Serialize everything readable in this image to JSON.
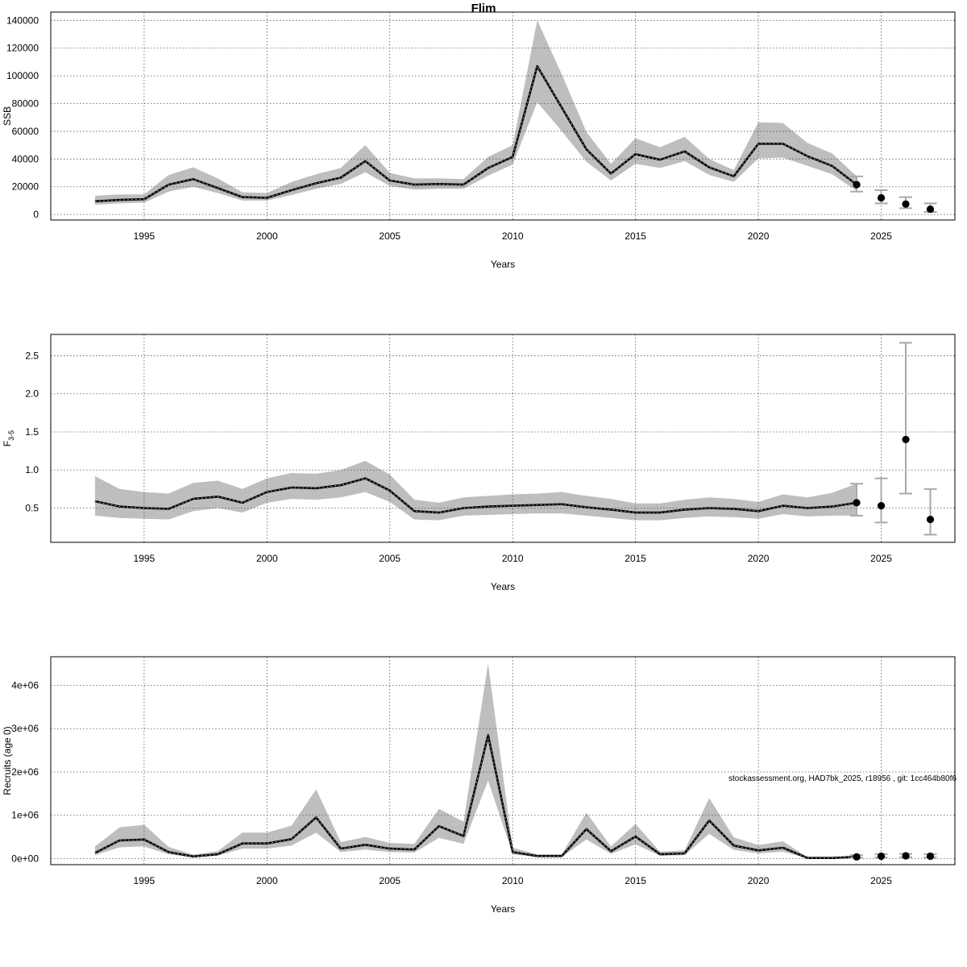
{
  "title": "Flim",
  "footer": "stockassessment.org, HAD7bk_2025, r18956 , git: 1cc464b80f6",
  "colors": {
    "band": "#bebebe",
    "line": "#000000",
    "point": "#000000",
    "errorbar": "#a9a9a9",
    "grid": "#555555"
  },
  "chart_data": [
    {
      "type": "line",
      "ylabel": "SSB",
      "xlabel": "Years",
      "xlim": [
        1991.2,
        2028.0
      ],
      "ylim": [
        -4000,
        146000
      ],
      "grid": true,
      "xticks": [
        1995,
        2000,
        2005,
        2010,
        2015,
        2020,
        2025
      ],
      "yticks": [
        0,
        20000,
        40000,
        60000,
        80000,
        100000,
        120000,
        140000
      ],
      "ytick_labels": [
        "0",
        "20000",
        "40000",
        "60000",
        "80000",
        "100000",
        "120000",
        "140000"
      ],
      "x": [
        1993,
        1994,
        1995,
        1996,
        1997,
        1998,
        1999,
        2000,
        2001,
        2002,
        2003,
        2004,
        2005,
        2006,
        2007,
        2008,
        2009,
        2010,
        2011,
        2012,
        2013,
        2014,
        2015,
        2016,
        2017,
        2018,
        2019,
        2020,
        2021,
        2022,
        2023,
        2024
      ],
      "estimate": [
        9500,
        10500,
        11000,
        21500,
        25500,
        19000,
        12500,
        12000,
        17500,
        22500,
        26500,
        38500,
        24500,
        21500,
        22000,
        21500,
        33500,
        41500,
        107000,
        77000,
        47000,
        29500,
        43500,
        39500,
        45500,
        34000,
        27500,
        51000,
        51000,
        42000,
        35000,
        21500
      ],
      "lower": [
        7000,
        8000,
        8500,
        16500,
        20000,
        15500,
        10000,
        10000,
        14000,
        18500,
        22000,
        30500,
        20500,
        18000,
        18500,
        18500,
        28000,
        36000,
        81000,
        60000,
        38000,
        24500,
        36500,
        33500,
        38500,
        28500,
        23500,
        40500,
        41000,
        35000,
        29000,
        17000
      ],
      "upper": [
        13500,
        14500,
        14500,
        28500,
        34000,
        26000,
        16000,
        15500,
        23500,
        29000,
        33500,
        50000,
        30000,
        26000,
        26000,
        25500,
        41500,
        50000,
        140000,
        101000,
        59500,
        36500,
        55000,
        48500,
        56000,
        40000,
        32000,
        66500,
        66000,
        51500,
        44000,
        27500
      ],
      "forecast": {
        "x": [
          2024,
          2025,
          2026,
          2027
        ],
        "values": [
          21500,
          12000,
          7500,
          3800
        ],
        "lower": [
          16500,
          8000,
          4500,
          1800
        ],
        "upper": [
          27500,
          17500,
          12500,
          8000
        ]
      }
    },
    {
      "type": "line",
      "ylabel": "F3-5",
      "ylabel_main": "F",
      "ylabel_sub": "3-5",
      "xlabel": "Years",
      "xlim": [
        1991.2,
        2028.0
      ],
      "ylim": [
        0.05,
        2.78
      ],
      "grid": true,
      "xticks": [
        1995,
        2000,
        2005,
        2010,
        2015,
        2020,
        2025
      ],
      "yticks": [
        0.5,
        1.0,
        1.5,
        2.0,
        2.5
      ],
      "ytick_labels": [
        "0.5",
        "1.0",
        "1.5",
        "2.0",
        "2.5"
      ],
      "x": [
        1993,
        1994,
        1995,
        1996,
        1997,
        1998,
        1999,
        2000,
        2001,
        2002,
        2003,
        2004,
        2005,
        2006,
        2007,
        2008,
        2009,
        2010,
        2011,
        2012,
        2013,
        2014,
        2015,
        2016,
        2017,
        2018,
        2019,
        2020,
        2021,
        2022,
        2023,
        2024
      ],
      "estimate": [
        0.59,
        0.52,
        0.5,
        0.49,
        0.62,
        0.65,
        0.57,
        0.71,
        0.77,
        0.76,
        0.8,
        0.89,
        0.73,
        0.46,
        0.44,
        0.5,
        0.52,
        0.53,
        0.54,
        0.55,
        0.51,
        0.48,
        0.44,
        0.44,
        0.48,
        0.5,
        0.49,
        0.46,
        0.53,
        0.5,
        0.52,
        0.57
      ],
      "lower": [
        0.4,
        0.37,
        0.36,
        0.35,
        0.46,
        0.5,
        0.44,
        0.57,
        0.62,
        0.61,
        0.64,
        0.71,
        0.58,
        0.35,
        0.34,
        0.4,
        0.41,
        0.42,
        0.43,
        0.43,
        0.4,
        0.37,
        0.34,
        0.34,
        0.37,
        0.39,
        0.38,
        0.36,
        0.42,
        0.39,
        0.4,
        0.4
      ],
      "upper": [
        0.92,
        0.75,
        0.71,
        0.69,
        0.83,
        0.86,
        0.75,
        0.89,
        0.96,
        0.95,
        1.0,
        1.12,
        0.94,
        0.61,
        0.57,
        0.64,
        0.66,
        0.68,
        0.69,
        0.71,
        0.66,
        0.62,
        0.56,
        0.56,
        0.61,
        0.64,
        0.62,
        0.58,
        0.68,
        0.64,
        0.7,
        0.82
      ],
      "forecast": {
        "x": [
          2024,
          2025,
          2026,
          2027
        ],
        "values": [
          0.57,
          0.53,
          1.4,
          0.35
        ],
        "lower": [
          0.4,
          0.31,
          0.69,
          0.15
        ],
        "upper": [
          0.82,
          0.89,
          2.67,
          0.75
        ]
      }
    },
    {
      "type": "line",
      "ylabel": "Recruits (age 0)",
      "xlabel": "Years",
      "xlim": [
        1991.2,
        2028.0
      ],
      "ylim": [
        -140000,
        4660000
      ],
      "grid": true,
      "xticks": [
        1995,
        2000,
        2005,
        2010,
        2015,
        2020,
        2025
      ],
      "yticks": [
        0,
        1000000,
        2000000,
        3000000,
        4000000
      ],
      "ytick_labels": [
        "0e+00",
        "1e+06",
        "2e+06",
        "3e+06",
        "4e+06"
      ],
      "x": [
        1993,
        1994,
        1995,
        1996,
        1997,
        1998,
        1999,
        2000,
        2001,
        2002,
        2003,
        2004,
        2005,
        2006,
        2007,
        2008,
        2009,
        2010,
        2011,
        2012,
        2013,
        2014,
        2015,
        2016,
        2017,
        2018,
        2019,
        2020,
        2021,
        2022,
        2023,
        2024
      ],
      "estimate": [
        130000,
        420000,
        440000,
        150000,
        50000,
        100000,
        350000,
        350000,
        450000,
        950000,
        230000,
        320000,
        230000,
        210000,
        750000,
        520000,
        2850000,
        150000,
        60000,
        60000,
        680000,
        170000,
        510000,
        100000,
        120000,
        880000,
        300000,
        190000,
        250000,
        15000,
        15000,
        40000
      ],
      "lower": [
        80000,
        260000,
        280000,
        100000,
        30000,
        70000,
        230000,
        230000,
        300000,
        600000,
        150000,
        210000,
        150000,
        140000,
        480000,
        340000,
        1800000,
        100000,
        40000,
        40000,
        440000,
        110000,
        330000,
        65000,
        80000,
        570000,
        200000,
        120000,
        160000,
        8000,
        8000,
        20000
      ],
      "upper": [
        280000,
        720000,
        780000,
        270000,
        90000,
        170000,
        600000,
        600000,
        760000,
        1600000,
        380000,
        500000,
        360000,
        340000,
        1150000,
        850000,
        4500000,
        250000,
        100000,
        100000,
        1060000,
        280000,
        800000,
        160000,
        190000,
        1400000,
        490000,
        310000,
        400000,
        30000,
        30000,
        80000
      ],
      "forecast": {
        "x": [
          2024,
          2025,
          2026,
          2027
        ],
        "values": [
          40000,
          55000,
          65000,
          55000
        ],
        "lower": [
          20000,
          25000,
          30000,
          25000
        ],
        "upper": [
          80000,
          100000,
          110000,
          100000
        ]
      }
    }
  ]
}
